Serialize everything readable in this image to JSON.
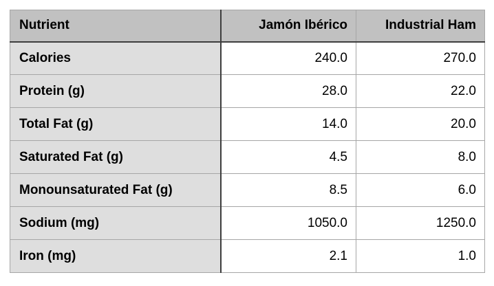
{
  "chart_data": {
    "type": "table",
    "columns": [
      "Nutrient",
      "Jamón Ibérico",
      "Industrial Ham"
    ],
    "categories": [
      "Calories",
      "Protein (g)",
      "Total Fat (g)",
      "Saturated Fat (g)",
      "Monounsaturated Fat (g)",
      "Sodium (mg)",
      "Iron (mg)"
    ],
    "series": [
      {
        "name": "Jamón Ibérico",
        "values": [
          240.0,
          28.0,
          14.0,
          4.5,
          8.5,
          1050.0,
          2.1
        ]
      },
      {
        "name": "Industrial Ham",
        "values": [
          270.0,
          22.0,
          20.0,
          8.0,
          6.0,
          1250.0,
          1.0
        ]
      }
    ],
    "rows": [
      [
        "Calories",
        "240.0",
        "270.0"
      ],
      [
        "Protein (g)",
        "28.0",
        "22.0"
      ],
      [
        "Total Fat (g)",
        "14.0",
        "20.0"
      ],
      [
        "Saturated Fat (g)",
        "4.5",
        "8.0"
      ],
      [
        "Monounsaturated Fat (g)",
        "8.5",
        "6.0"
      ],
      [
        "Sodium (mg)",
        "1050.0",
        "1250.0"
      ],
      [
        "Iron (mg)",
        "2.1",
        "1.0"
      ]
    ]
  },
  "colors": {
    "header_bg": "#c1c1c1",
    "label_col_bg": "#dedede",
    "cell_bg": "#ffffff",
    "border_dark": "#3d3d3d",
    "border_light": "#a6a6a6",
    "text": "#000000"
  }
}
